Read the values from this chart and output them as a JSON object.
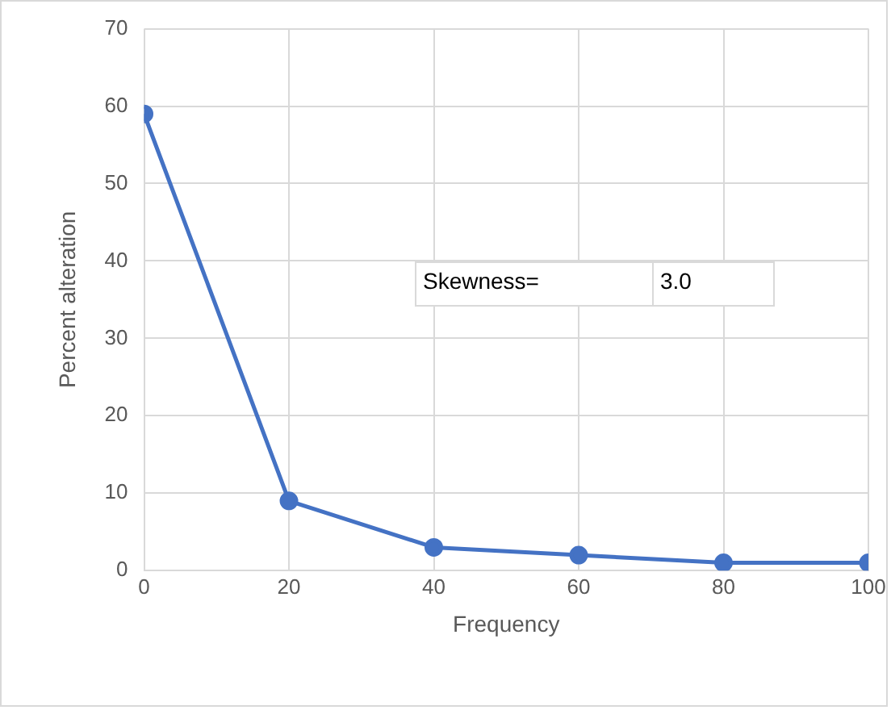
{
  "chart_data": {
    "type": "line",
    "xlabel": "Frequency",
    "ylabel": "Percent alteration",
    "x": [
      0,
      20,
      40,
      60,
      80,
      100
    ],
    "series": [
      {
        "color": "#4472c4",
        "values": [
          59,
          9,
          3,
          2,
          1,
          1
        ]
      }
    ],
    "xlim": [
      0,
      100
    ],
    "xticks": [
      0,
      20,
      40,
      60,
      80,
      100
    ],
    "ylim": [
      0,
      70
    ],
    "yticks": [
      0,
      10,
      20,
      30,
      40,
      50,
      60,
      70
    ],
    "grid": true,
    "legend": false,
    "marker": "circle",
    "line_style": "solid",
    "annotations": [
      "Skewness=",
      "3.0"
    ]
  }
}
